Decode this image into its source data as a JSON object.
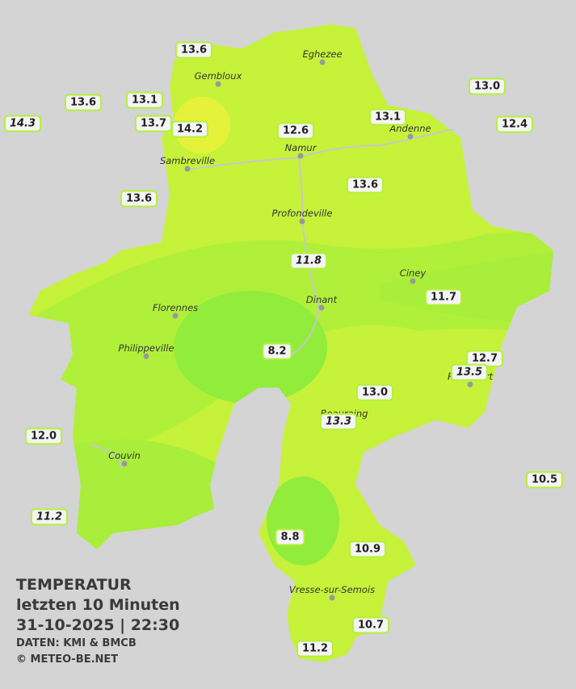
{
  "title": "TEMPERATUR",
  "subtitle": "letzten 10 Minuten",
  "timestamp": "31-10-2025  |  22:30",
  "source": "DATEN: KMI & BMCB",
  "copyright": "© METEO-BE.NET",
  "towns": [
    "Eghezee",
    "Gembloux",
    "Sambreville",
    "Namur",
    "Andenne",
    "Profondeville",
    "Florennes",
    "Ciney",
    "Dinant",
    "Philippeville",
    "Rochefort",
    "Beauraing",
    "Couvin",
    "Vresse-sur-Semois"
  ],
  "stations": [
    {
      "label": "13.6"
    },
    {
      "label": "13.6"
    },
    {
      "label": "13.1"
    },
    {
      "label": "14.3",
      "italic": true
    },
    {
      "label": "13.7"
    },
    {
      "label": "14.2"
    },
    {
      "label": "12.6"
    },
    {
      "label": "13.1"
    },
    {
      "label": "13.0"
    },
    {
      "label": "12.4"
    },
    {
      "label": "13.6"
    },
    {
      "label": "13.6"
    },
    {
      "label": "11.8",
      "italic": true
    },
    {
      "label": "11.7"
    },
    {
      "label": "8.2"
    },
    {
      "label": "12.7"
    },
    {
      "label": "13.5",
      "italic": true
    },
    {
      "label": "13.0"
    },
    {
      "label": "13.3",
      "italic": true
    },
    {
      "label": "12.0"
    },
    {
      "label": "10.5"
    },
    {
      "label": "11.2",
      "italic": true
    },
    {
      "label": "8.8"
    },
    {
      "label": "10.9"
    },
    {
      "label": "10.7"
    },
    {
      "label": "11.2"
    }
  ]
}
